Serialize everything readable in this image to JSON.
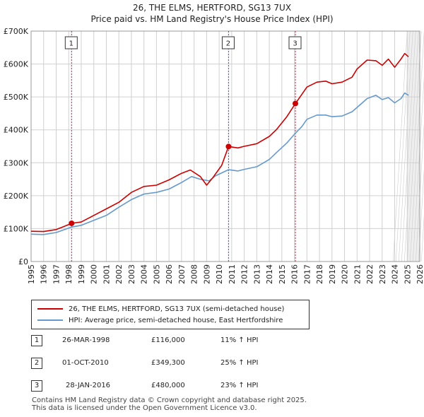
{
  "title_line1": "26, THE ELMS, HERTFORD, SG13 7UX",
  "title_line2": "Price paid vs. HM Land Registry's House Price Index (HPI)",
  "legend": {
    "property_label": "26, THE ELMS, HERTFORD, SG13 7UX (semi-detached house)",
    "hpi_label": "HPI: Average price, semi-detached house, East Hertfordshire"
  },
  "colors": {
    "property": "#cc0000",
    "hpi": "#6699cc",
    "band": "#dce6f2",
    "grid": "#d0d0d0"
  },
  "sales": [
    {
      "num": "1",
      "date": "26-MAR-1998",
      "price": "£116,000",
      "hpi_delta": "11% ↑ HPI"
    },
    {
      "num": "2",
      "date": "01-OCT-2010",
      "price": "£349,300",
      "hpi_delta": "25% ↑ HPI"
    },
    {
      "num": "3",
      "date": "28-JAN-2016",
      "price": "£480,000",
      "hpi_delta": "23% ↑ HPI"
    }
  ],
  "footer_line1": "Contains HM Land Registry data © Crown copyright and database right 2025.",
  "footer_line2": "This data is licensed under the Open Government Licence v3.0.",
  "chart_data": {
    "type": "line",
    "title": "Price paid vs. HM Land Registry's House Price Index (HPI)",
    "ylim": [
      0,
      700000
    ],
    "xlim": [
      1995,
      2026
    ],
    "y_ticks": [
      0,
      100000,
      200000,
      300000,
      400000,
      500000,
      600000,
      700000
    ],
    "y_tick_labels": [
      "£0",
      "£100K",
      "£200K",
      "£300K",
      "£400K",
      "£500K",
      "£600K",
      "£700K"
    ],
    "x_ticks": [
      1995,
      1996,
      1997,
      1998,
      1999,
      2000,
      2001,
      2002,
      2003,
      2004,
      2005,
      2006,
      2007,
      2008,
      2009,
      2010,
      2011,
      2012,
      2013,
      2014,
      2015,
      2016,
      2017,
      2018,
      2019,
      2020,
      2021,
      2022,
      2023,
      2024,
      2025,
      2026
    ],
    "forecast_from": 2025.0,
    "sale_markers": [
      {
        "label": "1",
        "x": 1998.23,
        "y": 116000
      },
      {
        "label": "2",
        "x": 2010.75,
        "y": 349300
      },
      {
        "label": "3",
        "x": 2016.08,
        "y": 480000
      }
    ],
    "series": [
      {
        "name": "26, THE ELMS, HERTFORD, SG13 7UX (semi-detached house)",
        "color": "#cc0000",
        "points": [
          [
            1995.0,
            92000
          ],
          [
            1996.0,
            91000
          ],
          [
            1997.0,
            97000
          ],
          [
            1997.6,
            106000
          ],
          [
            1998.23,
            116000
          ],
          [
            1999.0,
            120000
          ],
          [
            2000.0,
            140000
          ],
          [
            2001.0,
            160000
          ],
          [
            2002.0,
            180000
          ],
          [
            2003.0,
            210000
          ],
          [
            2004.0,
            228000
          ],
          [
            2005.0,
            232000
          ],
          [
            2006.0,
            248000
          ],
          [
            2007.0,
            268000
          ],
          [
            2007.7,
            278000
          ],
          [
            2008.5,
            258000
          ],
          [
            2009.0,
            232000
          ],
          [
            2009.5,
            255000
          ],
          [
            2010.2,
            292000
          ],
          [
            2010.75,
            349300
          ],
          [
            2011.5,
            345000
          ],
          [
            2012.0,
            350000
          ],
          [
            2013.0,
            358000
          ],
          [
            2014.0,
            380000
          ],
          [
            2014.6,
            402000
          ],
          [
            2015.4,
            440000
          ],
          [
            2016.08,
            480000
          ],
          [
            2016.6,
            508000
          ],
          [
            2017.0,
            530000
          ],
          [
            2017.8,
            545000
          ],
          [
            2018.5,
            548000
          ],
          [
            2019.0,
            540000
          ],
          [
            2019.8,
            545000
          ],
          [
            2020.6,
            560000
          ],
          [
            2021.0,
            585000
          ],
          [
            2021.8,
            612000
          ],
          [
            2022.5,
            610000
          ],
          [
            2023.0,
            596000
          ],
          [
            2023.5,
            615000
          ],
          [
            2024.0,
            590000
          ],
          [
            2024.5,
            615000
          ],
          [
            2024.8,
            632000
          ],
          [
            2025.1,
            622000
          ]
        ]
      },
      {
        "name": "HPI: Average price, semi-detached house, East Hertfordshire",
        "color": "#6699cc",
        "points": [
          [
            1995.0,
            83000
          ],
          [
            1996.0,
            82000
          ],
          [
            1997.0,
            88000
          ],
          [
            1998.23,
            104500
          ],
          [
            1999.0,
            110000
          ],
          [
            2000.0,
            125000
          ],
          [
            2001.0,
            140000
          ],
          [
            2002.0,
            165000
          ],
          [
            2003.0,
            188000
          ],
          [
            2004.0,
            205000
          ],
          [
            2005.0,
            210000
          ],
          [
            2006.0,
            220000
          ],
          [
            2007.0,
            240000
          ],
          [
            2007.8,
            258000
          ],
          [
            2008.5,
            250000
          ],
          [
            2009.2,
            245000
          ],
          [
            2009.7,
            260000
          ],
          [
            2010.75,
            279000
          ],
          [
            2011.5,
            275000
          ],
          [
            2012.0,
            280000
          ],
          [
            2013.0,
            288000
          ],
          [
            2014.0,
            310000
          ],
          [
            2014.6,
            332000
          ],
          [
            2015.4,
            360000
          ],
          [
            2016.08,
            390000
          ],
          [
            2016.6,
            410000
          ],
          [
            2017.0,
            432000
          ],
          [
            2017.8,
            445000
          ],
          [
            2018.5,
            445000
          ],
          [
            2019.0,
            440000
          ],
          [
            2019.8,
            442000
          ],
          [
            2020.6,
            455000
          ],
          [
            2021.0,
            468000
          ],
          [
            2021.8,
            495000
          ],
          [
            2022.5,
            505000
          ],
          [
            2023.0,
            492000
          ],
          [
            2023.5,
            498000
          ],
          [
            2024.0,
            482000
          ],
          [
            2024.5,
            495000
          ],
          [
            2024.8,
            512000
          ],
          [
            2025.1,
            505000
          ]
        ]
      }
    ]
  }
}
